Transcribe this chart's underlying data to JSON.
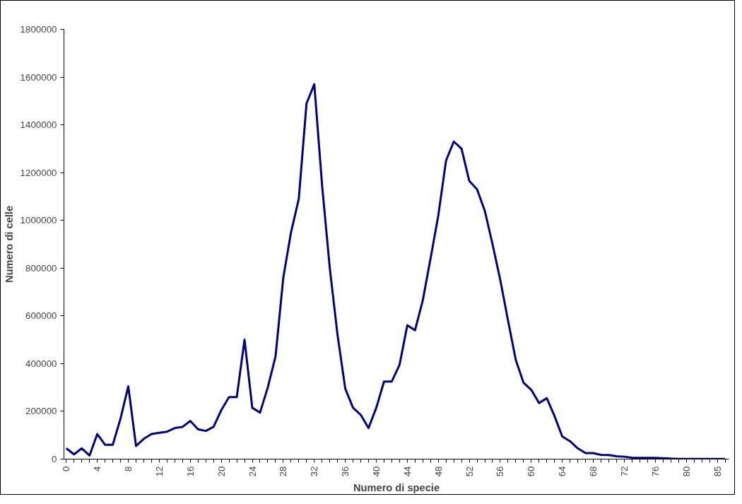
{
  "chart_data": {
    "type": "line",
    "xlabel": "Numero di specie",
    "ylabel": "Numero di celle",
    "categories": [
      "0",
      null,
      null,
      null,
      "4",
      null,
      null,
      null,
      "8",
      null,
      null,
      null,
      "12",
      null,
      null,
      null,
      "16",
      null,
      null,
      null,
      "20",
      null,
      null,
      null,
      "24",
      null,
      null,
      null,
      "28",
      null,
      null,
      null,
      "32",
      null,
      null,
      null,
      "36",
      null,
      null,
      null,
      "40",
      null,
      null,
      null,
      "44",
      null,
      null,
      null,
      "48",
      null,
      null,
      null,
      "52",
      null,
      null,
      null,
      "56",
      null,
      null,
      null,
      "60",
      null,
      null,
      null,
      "64",
      null,
      null,
      null,
      "68",
      null,
      null,
      null,
      "72",
      null,
      null,
      null,
      "76",
      null,
      null,
      null,
      "80",
      null,
      null,
      null,
      "85",
      null
    ],
    "series": [
      {
        "color": "#000080",
        "values": [
          45000,
          20000,
          45000,
          15000,
          105000,
          60000,
          60000,
          170000,
          305000,
          55000,
          85000,
          105000,
          110000,
          115000,
          130000,
          135000,
          160000,
          125000,
          118000,
          135000,
          205000,
          260000,
          260000,
          500000,
          215000,
          195000,
          300000,
          430000,
          760000,
          950000,
          1090000,
          1490000,
          1570000,
          1150000,
          800000,
          520000,
          295000,
          215000,
          185000,
          130000,
          215000,
          325000,
          325000,
          395000,
          560000,
          540000,
          665000,
          840000,
          1020000,
          1250000,
          1330000,
          1300000,
          1165000,
          1130000,
          1040000,
          900000,
          750000,
          580000,
          415000,
          320000,
          290000,
          235000,
          255000,
          180000,
          95000,
          75000,
          45000,
          25000,
          25000,
          18000,
          17000,
          12000,
          10000,
          6000,
          5000,
          5000,
          5000,
          4000,
          2000,
          1000,
          1000,
          1000,
          1000,
          1000,
          1000,
          1000
        ]
      }
    ],
    "ylim": [
      0,
      1800000
    ],
    "yticks": [
      0,
      200000,
      400000,
      600000,
      800000,
      1000000,
      1200000,
      1400000,
      1600000,
      1800000
    ],
    "line_style": "solid"
  }
}
